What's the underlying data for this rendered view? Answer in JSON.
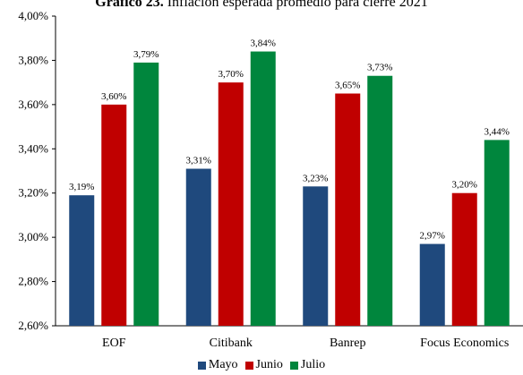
{
  "title": {
    "bold": "Gráfico 23.",
    "rest": " Inflación esperada promedio para cierre 2021"
  },
  "chart_data": {
    "type": "bar",
    "title": "Gráfico 23. Inflación esperada promedio para cierre 2021",
    "xlabel": "",
    "ylabel": "",
    "categories": [
      "EOF",
      "Citibank",
      "Banrep",
      "Focus Economics"
    ],
    "series": [
      {
        "name": "Mayo",
        "color": "#1f497d",
        "values": [
          3.19,
          3.31,
          3.23,
          2.97
        ]
      },
      {
        "name": "Junio",
        "color": "#c00000",
        "values": [
          3.6,
          3.7,
          3.65,
          3.2
        ]
      },
      {
        "name": "Julio",
        "color": "#00863d",
        "values": [
          3.79,
          3.84,
          3.73,
          3.44
        ]
      }
    ],
    "ylim": [
      2.6,
      4.0
    ],
    "yticks": [
      2.6,
      2.8,
      3.0,
      3.2,
      3.4,
      3.6,
      3.8,
      4.0
    ],
    "ytick_labels": [
      "2,60%",
      "2,80%",
      "3,00%",
      "3,20%",
      "3,40%",
      "3,60%",
      "3,80%",
      "4,00%"
    ],
    "data_labels": [
      [
        "3,19%",
        "3,31%",
        "3,23%",
        "2,97%"
      ],
      [
        "3,60%",
        "3,70%",
        "3,65%",
        "3,20%"
      ],
      [
        "3,79%",
        "3,84%",
        "3,73%",
        "3,44%"
      ]
    ],
    "grid": false,
    "legend_position": "bottom"
  }
}
